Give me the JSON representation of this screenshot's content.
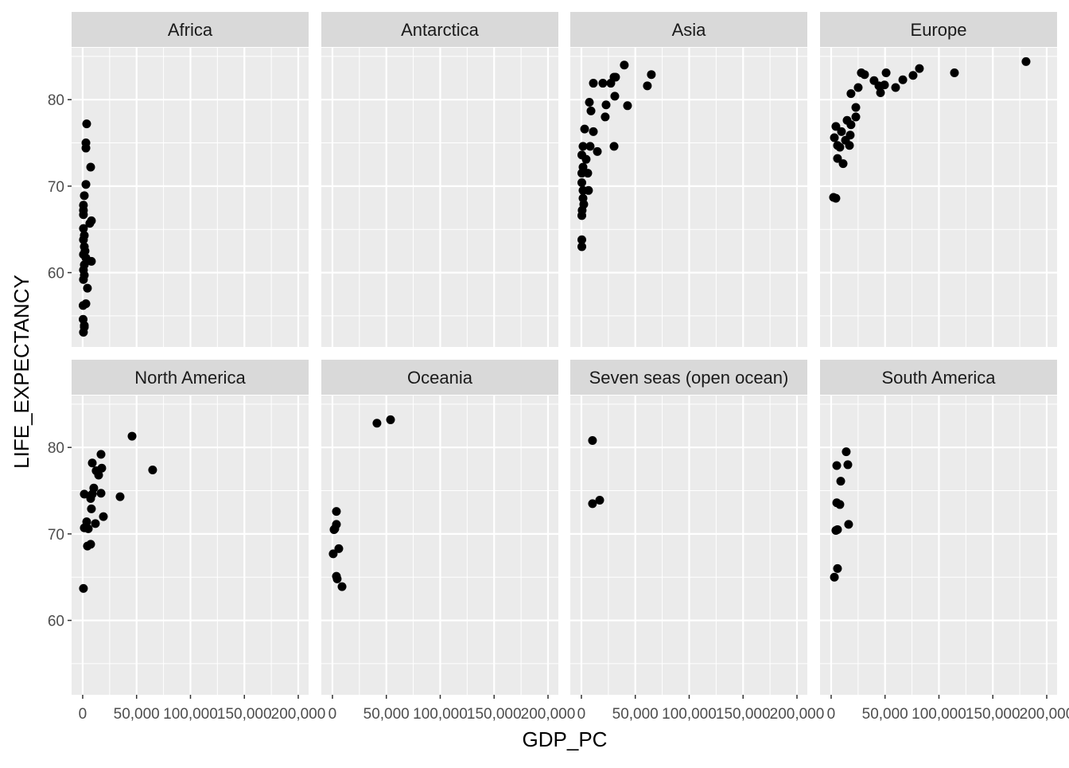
{
  "chart_data": {
    "type": "scatter",
    "facet_layout": "2 rows x 4 columns, shared axes",
    "xlabel": "GDP_PC",
    "ylabel": "LIFE_EXPECTANCY",
    "xlim": [
      -10300,
      209600
    ],
    "ylim": [
      51.4,
      86
    ],
    "x_ticks": [
      0,
      50000,
      100000,
      150000,
      200000
    ],
    "x_tick_labels": [
      "0",
      "50,000",
      "100,000",
      "150,000",
      "200,000"
    ],
    "y_ticks": [
      60,
      70,
      80
    ],
    "y_tick_labels": [
      "60",
      "70",
      "80"
    ],
    "grid": true,
    "colors": {
      "panel": "#EBEBEB",
      "strip": "#D9D9D9",
      "grid": "#FFFFFF",
      "point": "#000000",
      "tick_text": "#4D4D4D"
    },
    "facets": [
      {
        "name": "Africa",
        "points": [
          [
            3700,
            77.2
          ],
          [
            3000,
            75.0
          ],
          [
            3000,
            74.4
          ],
          [
            7400,
            72.2
          ],
          [
            3000,
            70.2
          ],
          [
            1500,
            68.9
          ],
          [
            700,
            67.8
          ],
          [
            700,
            67.2
          ],
          [
            700,
            66.7
          ],
          [
            8100,
            66.0
          ],
          [
            6600,
            65.7
          ],
          [
            700,
            65.1
          ],
          [
            1500,
            64.3
          ],
          [
            700,
            63.8
          ],
          [
            1500,
            63.0
          ],
          [
            2200,
            62.5
          ],
          [
            700,
            62.1
          ],
          [
            3000,
            61.7
          ],
          [
            8100,
            61.3
          ],
          [
            1500,
            60.9
          ],
          [
            700,
            60.3
          ],
          [
            1500,
            59.7
          ],
          [
            700,
            59.2
          ],
          [
            4400,
            58.2
          ],
          [
            400,
            56.2
          ],
          [
            3000,
            56.4
          ],
          [
            400,
            54.6
          ],
          [
            1500,
            53.9
          ],
          [
            700,
            53.1
          ],
          [
            1500,
            53.7
          ]
        ]
      },
      {
        "name": "Antarctica",
        "points": []
      },
      {
        "name": "Asia",
        "points": [
          [
            39800,
            84.0
          ],
          [
            64900,
            82.9
          ],
          [
            61200,
            81.6
          ],
          [
            11100,
            81.9
          ],
          [
            19900,
            81.9
          ],
          [
            27300,
            81.9
          ],
          [
            30300,
            82.6
          ],
          [
            31700,
            82.6
          ],
          [
            7400,
            79.7
          ],
          [
            31000,
            80.4
          ],
          [
            22900,
            79.4
          ],
          [
            42800,
            79.3
          ],
          [
            8900,
            78.7
          ],
          [
            22100,
            78.0
          ],
          [
            3000,
            76.6
          ],
          [
            11100,
            76.3
          ],
          [
            1500,
            74.6
          ],
          [
            8100,
            74.6
          ],
          [
            30300,
            74.6
          ],
          [
            14800,
            74.0
          ],
          [
            400,
            73.6
          ],
          [
            4400,
            73.1
          ],
          [
            1500,
            72.2
          ],
          [
            400,
            71.5
          ],
          [
            5900,
            71.5
          ],
          [
            400,
            70.4
          ],
          [
            1500,
            69.5
          ],
          [
            6600,
            69.5
          ],
          [
            1500,
            68.6
          ],
          [
            2200,
            67.9
          ],
          [
            700,
            67.2
          ],
          [
            400,
            66.6
          ],
          [
            400,
            63.8
          ],
          [
            400,
            63.0
          ]
        ]
      },
      {
        "name": "Europe",
        "points": [
          [
            180800,
            84.4
          ],
          [
            114400,
            83.1
          ],
          [
            81900,
            83.6
          ],
          [
            76000,
            82.8
          ],
          [
            66500,
            82.3
          ],
          [
            51000,
            83.1
          ],
          [
            28000,
            83.1
          ],
          [
            31000,
            82.9
          ],
          [
            39800,
            82.2
          ],
          [
            44300,
            81.6
          ],
          [
            49500,
            81.7
          ],
          [
            59800,
            81.4
          ],
          [
            45800,
            80.8
          ],
          [
            25100,
            81.4
          ],
          [
            18400,
            80.7
          ],
          [
            22900,
            79.1
          ],
          [
            22900,
            78.0
          ],
          [
            14800,
            77.6
          ],
          [
            18400,
            77.1
          ],
          [
            4400,
            76.9
          ],
          [
            9600,
            76.3
          ],
          [
            17700,
            75.9
          ],
          [
            3000,
            75.6
          ],
          [
            13300,
            75.3
          ],
          [
            5900,
            74.7
          ],
          [
            17000,
            74.7
          ],
          [
            8100,
            74.5
          ],
          [
            5900,
            73.2
          ],
          [
            11100,
            72.6
          ],
          [
            2200,
            68.7
          ],
          [
            4400,
            68.6
          ]
        ]
      },
      {
        "name": "North America",
        "points": [
          [
            45800,
            81.3
          ],
          [
            64900,
            77.4
          ],
          [
            17000,
            79.2
          ],
          [
            8900,
            78.2
          ],
          [
            17700,
            77.6
          ],
          [
            12500,
            77.3
          ],
          [
            14800,
            76.8
          ],
          [
            10300,
            75.3
          ],
          [
            1500,
            74.6
          ],
          [
            8900,
            74.6
          ],
          [
            17000,
            74.7
          ],
          [
            34700,
            74.3
          ],
          [
            7400,
            74.1
          ],
          [
            8100,
            72.9
          ],
          [
            19200,
            72.0
          ],
          [
            3700,
            71.4
          ],
          [
            11800,
            71.2
          ],
          [
            1500,
            70.7
          ],
          [
            5200,
            70.6
          ],
          [
            4400,
            68.6
          ],
          [
            7400,
            68.8
          ],
          [
            700,
            63.7
          ]
        ]
      },
      {
        "name": "Oceania",
        "points": [
          [
            41300,
            82.8
          ],
          [
            53900,
            83.2
          ],
          [
            3700,
            72.6
          ],
          [
            3700,
            71.1
          ],
          [
            2200,
            70.6
          ],
          [
            1500,
            70.5
          ],
          [
            5900,
            68.3
          ],
          [
            700,
            67.7
          ],
          [
            3700,
            65.1
          ],
          [
            4400,
            64.8
          ],
          [
            8900,
            63.9
          ]
        ]
      },
      {
        "name": "Seven seas (open ocean)",
        "points": [
          [
            10300,
            80.8
          ],
          [
            10300,
            73.5
          ],
          [
            17000,
            73.9
          ]
        ]
      },
      {
        "name": "South America",
        "points": [
          [
            14000,
            79.5
          ],
          [
            5200,
            77.9
          ],
          [
            15500,
            78.0
          ],
          [
            8900,
            76.1
          ],
          [
            5200,
            73.6
          ],
          [
            8100,
            73.4
          ],
          [
            4400,
            70.4
          ],
          [
            5900,
            70.5
          ],
          [
            16200,
            71.1
          ],
          [
            5900,
            66.0
          ],
          [
            3000,
            65.0
          ]
        ]
      }
    ]
  }
}
